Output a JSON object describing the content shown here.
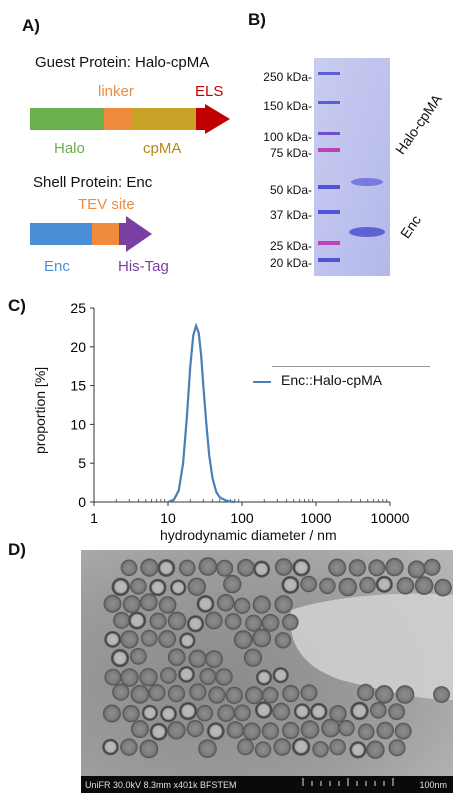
{
  "panelA": {
    "label": "A)",
    "guest_title": "Guest Protein:  Halo-cpMA",
    "linker": "linker",
    "els": "ELS",
    "halo": "Halo",
    "cpma": "cpMA",
    "shell_title": "Shell Protein: Enc",
    "tev": "TEV site",
    "enc": "Enc",
    "histag": "His-Tag",
    "colors": {
      "halo": "#6ab04c",
      "linker": "#f08a3c",
      "cpma": "#c9a227",
      "els": "#c00000",
      "enc": "#4a90d9",
      "his": "#7a3fa3"
    }
  },
  "panelB": {
    "label": "B)",
    "ladder": [
      "250 kDa-",
      "150 kDa-",
      "100 kDa-",
      "75 kDa-",
      "50 kDa-",
      "37 kDa-",
      "25 kDa-",
      "20 kDa-"
    ],
    "band_halo": "Halo-cpMA",
    "band_enc": "Enc"
  },
  "panelC": {
    "label": "C)",
    "chart_data": {
      "type": "line",
      "xlabel": "hydrodynamic diameter / nm",
      "ylabel": "proportion [%]",
      "xscale": "log",
      "xlim": [
        1,
        10000
      ],
      "ylim": [
        0,
        25
      ],
      "xticks": [
        1,
        10,
        100,
        1000,
        10000
      ],
      "xtick_labels": [
        "1",
        "10",
        "100",
        "1000",
        "10000"
      ],
      "yticks": [
        0,
        5,
        10,
        15,
        20,
        25
      ],
      "legend": "right",
      "series": [
        {
          "name": "Enc::Halo-cpMA",
          "color": "#4a7fb5",
          "x": [
            10,
            12,
            14,
            16,
            18,
            20,
            22,
            24,
            26,
            28,
            30,
            33,
            36,
            40,
            45,
            50,
            60,
            70,
            80
          ],
          "y": [
            0,
            0.3,
            1.5,
            5,
            11,
            17.5,
            21.5,
            22.7,
            21.8,
            19,
            15,
            10,
            6,
            3,
            1.3,
            0.6,
            0.2,
            0.05,
            0
          ]
        }
      ]
    }
  },
  "panelD": {
    "label": "D)",
    "info": "UniFR 30.0kV 8.3mm x401k BFSTEM",
    "scale": "100nm"
  }
}
